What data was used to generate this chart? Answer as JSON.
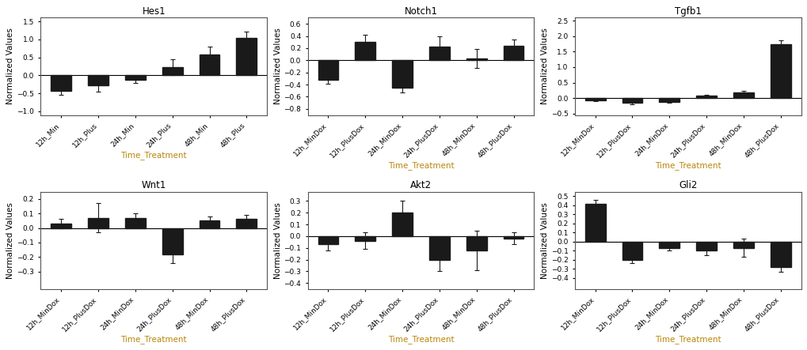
{
  "plots": [
    {
      "title": "Hes1",
      "categories": [
        "12h_Min",
        "12h_Plus",
        "24h_Min",
        "24h_Plus",
        "48h_Min",
        "48h_Plus"
      ],
      "values": [
        -0.42,
        -0.28,
        -0.12,
        0.22,
        0.57,
        1.03
      ],
      "errors": [
        0.12,
        0.18,
        0.08,
        0.22,
        0.22,
        0.18
      ],
      "ylim": [
        -1.1,
        1.6
      ],
      "yticks": [
        -1.0,
        -0.5,
        0.0,
        0.5,
        1.0,
        1.5
      ]
    },
    {
      "title": "Notch1",
      "categories": [
        "12h_MinDox",
        "12h_PlusDox",
        "24h_MinDox",
        "24h_PlusDox",
        "48h_MinDox",
        "48h_PlusDox"
      ],
      "values": [
        -0.32,
        0.3,
        -0.45,
        0.22,
        0.03,
        0.24
      ],
      "errors": [
        0.06,
        0.12,
        0.08,
        0.18,
        0.15,
        0.1
      ],
      "ylim": [
        -0.9,
        0.7
      ],
      "yticks": [
        -0.8,
        -0.6,
        -0.4,
        -0.2,
        0.0,
        0.2,
        0.4,
        0.6
      ]
    },
    {
      "title": "Tgfb1",
      "categories": [
        "12h_MinDox",
        "12h_PlusDox",
        "24h_MinDox",
        "24h_PlusDox",
        "48h_MinDox",
        "48h_PlusDox"
      ],
      "values": [
        -0.07,
        -0.15,
        -0.12,
        0.07,
        0.18,
        1.75
      ],
      "errors": [
        0.04,
        0.05,
        0.04,
        0.04,
        0.06,
        0.12
      ],
      "ylim": [
        -0.55,
        2.6
      ],
      "yticks": [
        -0.5,
        0.0,
        0.5,
        1.0,
        1.5,
        2.0,
        2.5
      ]
    },
    {
      "title": "Wnt1",
      "categories": [
        "12h_MinDox",
        "12h_PlusDox",
        "24h_MinDox",
        "24h_PlusDox",
        "48h_MinDox",
        "48h_PlusDox"
      ],
      "values": [
        0.03,
        0.07,
        0.07,
        -0.18,
        0.05,
        0.06
      ],
      "errors": [
        0.03,
        0.1,
        0.03,
        0.06,
        0.03,
        0.03
      ],
      "ylim": [
        -0.42,
        0.25
      ],
      "yticks": [
        -0.3,
        -0.2,
        -0.1,
        0.0,
        0.1,
        0.2
      ]
    },
    {
      "title": "Akt2",
      "categories": [
        "12h_MinDox",
        "12h_PlusDox",
        "24h_MinDox",
        "24h_PlusDox",
        "48h_MinDox",
        "48h_PlusDox"
      ],
      "values": [
        -0.07,
        -0.04,
        0.2,
        -0.2,
        -0.12,
        -0.02
      ],
      "errors": [
        0.05,
        0.07,
        0.1,
        0.1,
        0.17,
        0.05
      ],
      "ylim": [
        -0.45,
        0.38
      ],
      "yticks": [
        -0.4,
        -0.3,
        -0.2,
        -0.1,
        0.0,
        0.1,
        0.2,
        0.3
      ]
    },
    {
      "title": "Gli2",
      "categories": [
        "12h_MinDox",
        "12h_PlusDox",
        "24h_MinDox",
        "24h_PlusDox",
        "48h_MinDox",
        "48h_PlusDox"
      ],
      "values": [
        0.42,
        -0.2,
        -0.07,
        -0.1,
        -0.07,
        -0.28
      ],
      "errors": [
        0.04,
        0.04,
        0.03,
        0.05,
        0.1,
        0.05
      ],
      "ylim": [
        -0.52,
        0.55
      ],
      "yticks": [
        -0.4,
        -0.3,
        -0.2,
        -0.1,
        0.0,
        0.1,
        0.2,
        0.3,
        0.4,
        0.5
      ]
    }
  ],
  "bar_color": "#1a1a1a",
  "error_color": "#1a1a1a",
  "xlabel": "Time_Treatment",
  "xlabel_color": "#b8860b",
  "ylabel": "Normalized Values",
  "bar_width": 0.55,
  "tick_fontsize": 6.5,
  "label_fontsize": 7.5,
  "title_fontsize": 8.5,
  "background_color": "#ffffff"
}
